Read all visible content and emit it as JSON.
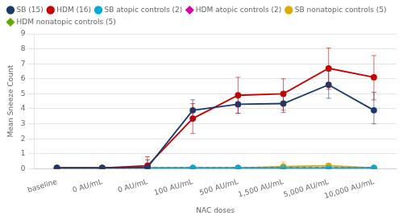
{
  "chart_data": {
    "type": "line",
    "xlabel": "NAC doses",
    "ylabel": "Mean Sneeze Count",
    "categories": [
      "baseline",
      "0 AU/mL",
      "0 AU/mL",
      "100 AU/mL",
      "500 AU/mL",
      "1,500 AU/mL",
      "5,000 AU/mL",
      "10,000 AU/mL"
    ],
    "series": [
      {
        "name": "SB (15)",
        "color": "#1a3a6b",
        "line_style": "solid",
        "marker": "circle",
        "values": [
          0.05,
          0.05,
          0.1,
          3.9,
          4.3,
          4.35,
          5.6,
          3.9
        ],
        "error_low": [
          0.0,
          0.0,
          0.0,
          0.7,
          0.6,
          0.6,
          0.9,
          0.9
        ],
        "error_high": [
          0.0,
          0.0,
          0.5,
          0.7,
          0.6,
          0.6,
          0.9,
          1.2
        ]
      },
      {
        "name": "HDM (16)",
        "color": "#cc0000",
        "line_style": "solid",
        "marker": "circle",
        "values": [
          0.05,
          0.05,
          0.2,
          3.35,
          4.9,
          5.0,
          6.7,
          6.1
        ],
        "error_low": [
          0.0,
          0.0,
          0.0,
          1.0,
          1.2,
          1.1,
          1.4,
          1.5
        ],
        "error_high": [
          0.0,
          0.0,
          0.6,
          1.0,
          1.2,
          1.0,
          1.35,
          1.45
        ]
      },
      {
        "name": "SB atopic controls (2)",
        "color": "#00aadd",
        "line_style": "solid",
        "marker": "circle",
        "values": [
          0.05,
          0.05,
          0.05,
          0.05,
          0.05,
          0.05,
          0.05,
          0.05
        ],
        "error_low": [
          0.0,
          0.0,
          0.0,
          0.0,
          0.0,
          0.0,
          0.0,
          0.0
        ],
        "error_high": [
          0.0,
          0.0,
          0.0,
          0.0,
          0.0,
          0.0,
          0.0,
          0.0
        ]
      },
      {
        "name": "HDM atopic controls (2)",
        "color": "#dd00aa",
        "line_style": "dashed",
        "marker": "diamond",
        "values": [
          0.05,
          0.05,
          0.05,
          0.05,
          0.05,
          0.05,
          0.05,
          0.05
        ],
        "error_low": [
          0.0,
          0.0,
          0.0,
          0.0,
          0.0,
          0.0,
          0.0,
          0.0
        ],
        "error_high": [
          0.0,
          0.0,
          0.0,
          0.0,
          0.0,
          0.0,
          0.0,
          0.0
        ]
      },
      {
        "name": "SB nonatopic controls (5)",
        "color": "#ddaa00",
        "line_style": "solid",
        "marker": "circle",
        "values": [
          0.05,
          0.05,
          0.05,
          0.05,
          0.05,
          0.15,
          0.2,
          0.05
        ],
        "error_low": [
          0.0,
          0.0,
          0.0,
          0.0,
          0.0,
          0.0,
          0.0,
          0.0
        ],
        "error_high": [
          0.0,
          0.0,
          0.0,
          0.0,
          0.0,
          0.3,
          0.1,
          0.0
        ]
      },
      {
        "name": "HDM nonatopic controls (5)",
        "color": "#66aa00",
        "line_style": "dashed",
        "marker": "diamond",
        "values": [
          0.05,
          0.05,
          0.05,
          0.05,
          0.05,
          0.05,
          0.05,
          0.05
        ],
        "error_low": [
          0.0,
          0.0,
          0.0,
          0.0,
          0.0,
          0.0,
          0.0,
          0.0
        ],
        "error_high": [
          0.0,
          0.0,
          0.0,
          0.0,
          0.0,
          0.0,
          0.0,
          0.0
        ]
      }
    ],
    "ylim": [
      0,
      9
    ],
    "yticks": [
      0,
      1,
      2,
      3,
      4,
      5,
      6,
      7,
      8,
      9
    ],
    "grid": true,
    "legend": "upper left"
  }
}
